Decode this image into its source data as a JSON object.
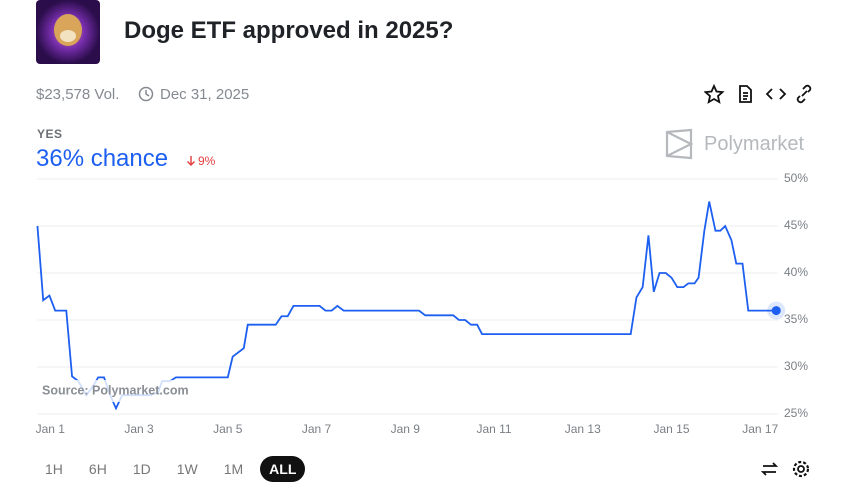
{
  "header": {
    "title": "Doge ETF approved in 2025?",
    "volume": "$23,578 Vol.",
    "end_date": "Dec 31, 2025"
  },
  "outcome": {
    "label": "YES",
    "chance": "36% chance",
    "change": "9%"
  },
  "brand": "Polymarket",
  "source": "Source: Polymarket.com",
  "ranges": [
    "1H",
    "6H",
    "1D",
    "1W",
    "1M",
    "ALL"
  ],
  "selected_range": "ALL",
  "chart_data": {
    "type": "line",
    "color": "#1d5ff0",
    "grid": true,
    "x": [
      0.71,
      0.84,
      0.98,
      1.11,
      1.36,
      1.49,
      1.63,
      1.81,
      1.94,
      2.08,
      2.21,
      2.35,
      2.48,
      2.62,
      3.02,
      3.25,
      3.43,
      3.52,
      3.7,
      3.83,
      5.0,
      5.11,
      5.36,
      5.45,
      6.08,
      6.21,
      6.35,
      6.48,
      7.07,
      7.2,
      7.34,
      7.47,
      7.61,
      9.31,
      9.45,
      10.08,
      10.21,
      10.35,
      10.48,
      10.62,
      10.73,
      14.08,
      14.21,
      14.35,
      14.48,
      14.6,
      14.73,
      14.87,
      15.0,
      15.13,
      15.27,
      15.38,
      15.52,
      15.61,
      15.74,
      15.85,
      15.99,
      16.1,
      16.21,
      16.35,
      16.46,
      16.6,
      16.73,
      17.36
    ],
    "values": [
      45.0,
      37.1,
      37.6,
      36.0,
      36.0,
      29.0,
      28.5,
      27.0,
      27.8,
      28.9,
      28.9,
      27.0,
      25.6,
      27.0,
      27.0,
      27.0,
      27.3,
      28.5,
      28.5,
      28.9,
      28.9,
      31.1,
      32.0,
      34.5,
      34.5,
      35.4,
      35.4,
      36.5,
      36.5,
      36.0,
      36.0,
      36.5,
      36.0,
      36.0,
      35.5,
      35.5,
      35.0,
      35.0,
      34.5,
      34.5,
      33.5,
      33.5,
      37.4,
      38.5,
      44.0,
      38.0,
      40.0,
      40.0,
      39.5,
      38.5,
      38.5,
      38.9,
      38.9,
      39.5,
      44.5,
      47.6,
      44.5,
      44.5,
      45.0,
      43.5,
      41.0,
      41.0,
      36.0,
      36.0
    ],
    "xlim": [
      0.7,
      17.4
    ],
    "xticks": [
      {
        "value": 1,
        "label": "Jan 1"
      },
      {
        "value": 3,
        "label": "Jan 3"
      },
      {
        "value": 5,
        "label": "Jan 5"
      },
      {
        "value": 7,
        "label": "Jan 7"
      },
      {
        "value": 9,
        "label": "Jan 9"
      },
      {
        "value": 11,
        "label": "Jan 11"
      },
      {
        "value": 13,
        "label": "Jan 13"
      },
      {
        "value": 15,
        "label": "Jan 15"
      },
      {
        "value": 17,
        "label": "Jan 17"
      }
    ],
    "ylim": [
      25,
      50
    ],
    "yticks": [
      {
        "value": 25,
        "label": "25%"
      },
      {
        "value": 30,
        "label": "30%"
      },
      {
        "value": 35,
        "label": "35%"
      },
      {
        "value": 40,
        "label": "40%"
      },
      {
        "value": 45,
        "label": "45%"
      },
      {
        "value": 50,
        "label": "50%"
      }
    ]
  }
}
